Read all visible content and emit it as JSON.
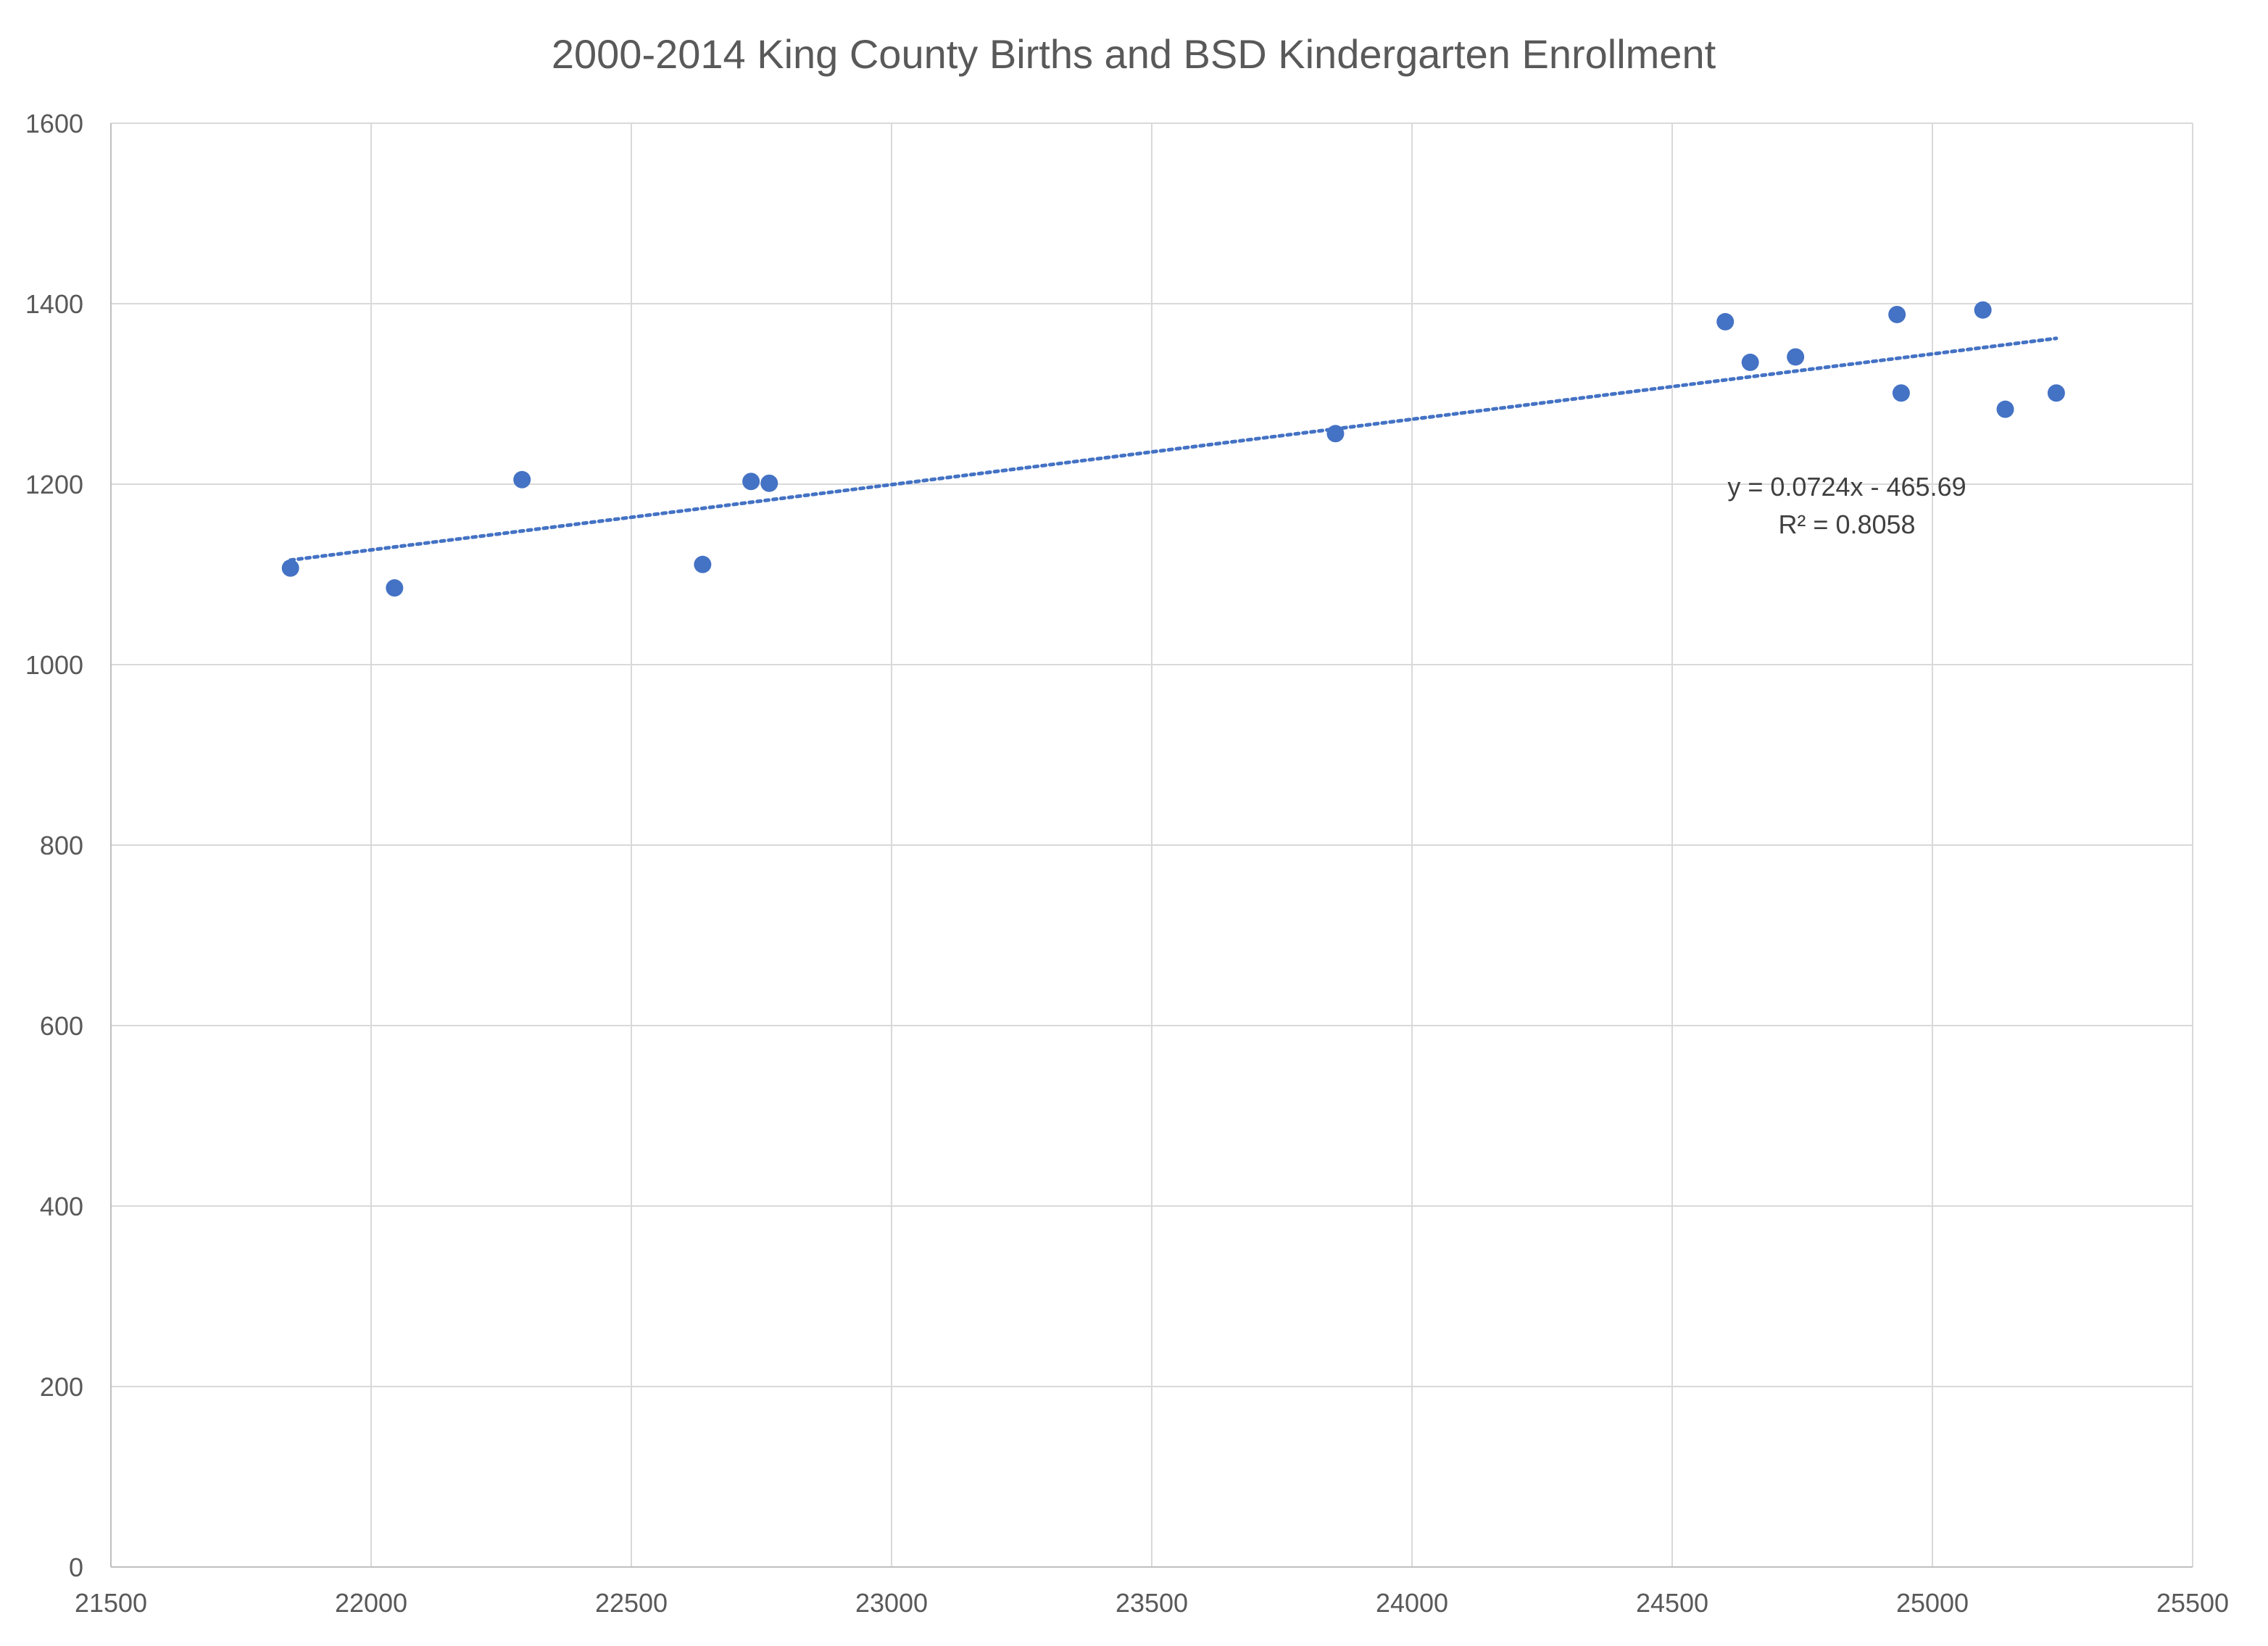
{
  "chart_data": {
    "type": "scatter",
    "title": "2000-2014 King County Births and BSD Kindergarten Enrollment",
    "xlabel": "",
    "ylabel": "",
    "xlim": [
      21500,
      25500
    ],
    "ylim": [
      0,
      1600
    ],
    "x_ticks": [
      21500,
      22000,
      22500,
      23000,
      23500,
      24000,
      24500,
      25000,
      25500
    ],
    "y_ticks": [
      0,
      200,
      400,
      600,
      800,
      1000,
      1200,
      1400,
      1600
    ],
    "grid": true,
    "legend": "none",
    "marker_color": "#4472C4",
    "trendline_color": "#4472C4",
    "series": [
      {
        "points": [
          {
            "x": 21845,
            "y": 1107
          },
          {
            "x": 22045,
            "y": 1085
          },
          {
            "x": 22290,
            "y": 1205
          },
          {
            "x": 22637,
            "y": 1111
          },
          {
            "x": 22730,
            "y": 1203
          },
          {
            "x": 22765,
            "y": 1201
          },
          {
            "x": 23853,
            "y": 1256
          },
          {
            "x": 24602,
            "y": 1380
          },
          {
            "x": 24650,
            "y": 1335
          },
          {
            "x": 24737,
            "y": 1341
          },
          {
            "x": 24932,
            "y": 1388
          },
          {
            "x": 24940,
            "y": 1301
          },
          {
            "x": 25097,
            "y": 1393
          },
          {
            "x": 25140,
            "y": 1283
          },
          {
            "x": 25238,
            "y": 1301
          }
        ]
      }
    ],
    "trendline": {
      "type": "linear",
      "style": "dotted",
      "slope": 0.0724,
      "intercept": -465.69,
      "x_range": [
        21845,
        25238
      ],
      "equation_label": "y = 0.0724x - 465.69",
      "r2_label": "R² = 0.8058"
    }
  }
}
